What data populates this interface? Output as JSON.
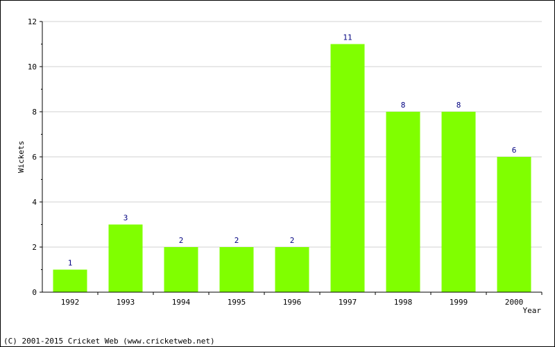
{
  "chart_data": {
    "type": "bar",
    "title": "",
    "xlabel": "Year",
    "ylabel": "Wickets",
    "categories": [
      "1992",
      "1993",
      "1994",
      "1995",
      "1996",
      "1997",
      "1998",
      "1999",
      "2000"
    ],
    "values": [
      1,
      3,
      2,
      2,
      2,
      11,
      8,
      8,
      6
    ],
    "ylim": [
      0,
      12
    ],
    "yticks": [
      0,
      2,
      4,
      6,
      8,
      10,
      12
    ],
    "grid": true,
    "bar_color": "#80ff00",
    "label_color": "#000080",
    "grid_color": "#d0d0d0"
  },
  "footer": {
    "copyright": "(C) 2001-2015 Cricket Web (www.cricketweb.net)"
  }
}
